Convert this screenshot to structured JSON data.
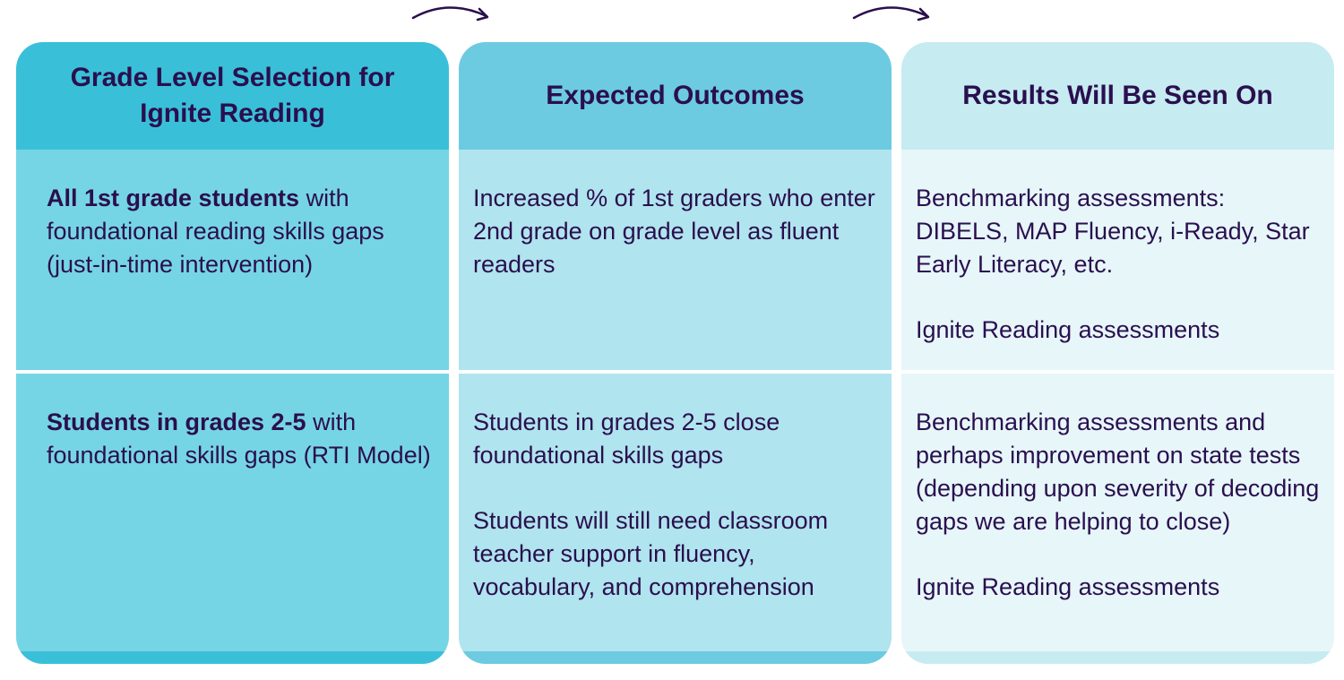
{
  "colors": {
    "text": "#2a0f4e",
    "col1_header": "#39c0d8",
    "col1_body": "#76d5e4",
    "col2_header": "#6ccbe0",
    "col2_body": "#b0e4ee",
    "col3_header": "#c6ebf1",
    "col3_body": "#e6f6f9"
  },
  "icons": {
    "arrow": "curved-arrow-right-icon"
  },
  "columns": [
    {
      "header_line1": "Grade Level Selection for",
      "header_line2": "Ignite Reading",
      "row1_bold": "All 1st grade students",
      "row1_rest": " with foundational reading skills gaps (just-in-time intervention)",
      "row2_bold": "Students in grades 2-5",
      "row2_rest": " with foundational skills gaps (RTI Model)"
    },
    {
      "header": "Expected Outcomes",
      "row1_p1": "Increased % of 1st graders who enter 2nd grade on grade level as fluent readers",
      "row2_p1": "Students in grades 2-5 close foundational skills gaps",
      "row2_p2": "Students will still need classroom teacher support in fluency, vocabulary, and comprehension"
    },
    {
      "header": "Results Will Be Seen On",
      "row1_p1": "Benchmarking assessments: DIBELS, MAP Fluency, i-Ready, Star Early Literacy, etc.",
      "row1_p2": "Ignite Reading assessments",
      "row2_p1": "Benchmarking assessments and perhaps improvement on state tests (depending upon severity of decoding gaps we are helping to close)",
      "row2_p2": "Ignite Reading assessments"
    }
  ]
}
